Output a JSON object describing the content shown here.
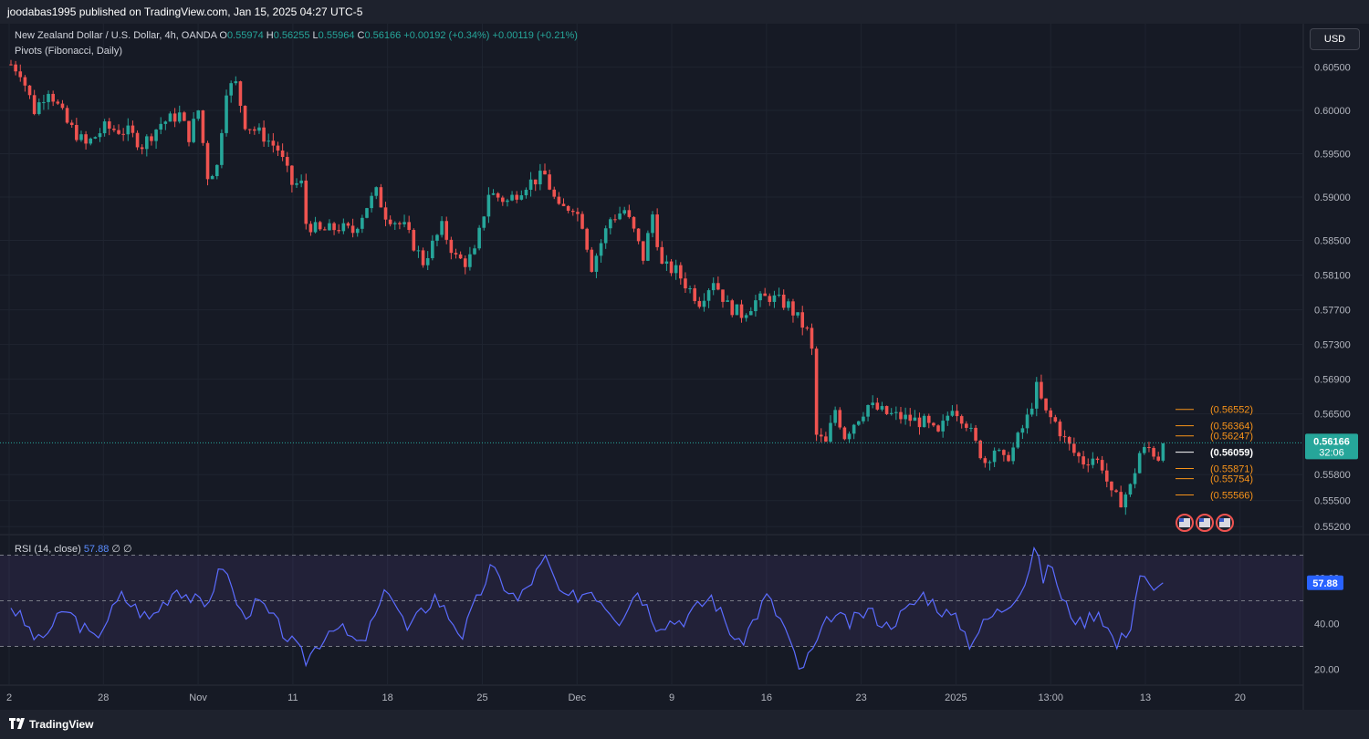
{
  "header": {
    "publisher": "joodabas1995 published on TradingView.com, Jan 15, 2025 04:27 UTC-5"
  },
  "legend": {
    "symbol": "New Zealand Dollar / U.S. Dollar, 4h, OANDA",
    "open_label": "O",
    "open": "0.55974",
    "high_label": "H",
    "high": "0.56255",
    "low_label": "L",
    "low": "0.55964",
    "close_label": "C",
    "close": "0.56166",
    "change1": "+0.00192 (+0.34%)",
    "change2": "+0.00119 (+0.21%)",
    "indicator": "Pivots (Fibonacci, Daily)"
  },
  "currency_button": "USD",
  "rsi_legend": {
    "label": "RSI (14, close)",
    "value": "57.88",
    "extra": "∅ ∅"
  },
  "footer": {
    "brand": "TradingView"
  },
  "colors": {
    "up": "#26a69a",
    "down": "#ef5350",
    "pivot": "#f7931a",
    "rsi": "#5b6cff",
    "background": "#161a25"
  },
  "chart_data": [
    {
      "type": "candlestick",
      "symbol": "NZDUSD",
      "timeframe": "4h",
      "y_ticks": [
        "0.60500",
        "0.60000",
        "0.59500",
        "0.59000",
        "0.58500",
        "0.58100",
        "0.57700",
        "0.57300",
        "0.56900",
        "0.56500",
        "0.55800",
        "0.55500",
        "0.55200"
      ],
      "ylim": [
        0.5515,
        0.6062
      ],
      "x_ticks": [
        "2",
        "28",
        "Nov",
        "11",
        "18",
        "25",
        "Dec",
        "9",
        "16",
        "23",
        "2025",
        "13:00",
        "13",
        "20"
      ],
      "price_path": [
        [
          0,
          0.6053
        ],
        [
          2,
          0.6045
        ],
        [
          5,
          0.6
        ],
        [
          8,
          0.6025
        ],
        [
          12,
          0.5985
        ],
        [
          16,
          0.596
        ],
        [
          20,
          0.598
        ],
        [
          25,
          0.5975
        ],
        [
          28,
          0.596
        ],
        [
          32,
          0.5985
        ],
        [
          36,
          0.5995
        ],
        [
          38,
          0.597
        ],
        [
          40,
          0.6
        ],
        [
          42,
          0.5925
        ],
        [
          44,
          0.5935
        ],
        [
          46,
          0.6025
        ],
        [
          48,
          0.603
        ],
        [
          50,
          0.5985
        ],
        [
          54,
          0.597
        ],
        [
          57,
          0.5955
        ],
        [
          60,
          0.5915
        ],
        [
          62,
          0.5915
        ],
        [
          63,
          0.587
        ],
        [
          66,
          0.586
        ],
        [
          70,
          0.5865
        ],
        [
          73,
          0.586
        ],
        [
          76,
          0.589
        ],
        [
          78,
          0.5905
        ],
        [
          80,
          0.588
        ],
        [
          84,
          0.5865
        ],
        [
          88,
          0.5825
        ],
        [
          92,
          0.5865
        ],
        [
          95,
          0.583
        ],
        [
          97,
          0.5825
        ],
        [
          99,
          0.5835
        ],
        [
          102,
          0.5905
        ],
        [
          106,
          0.5895
        ],
        [
          110,
          0.5915
        ],
        [
          114,
          0.5925
        ],
        [
          117,
          0.5885
        ],
        [
          120,
          0.589
        ],
        [
          122,
          0.587
        ],
        [
          124,
          0.582
        ],
        [
          128,
          0.5875
        ],
        [
          131,
          0.5885
        ],
        [
          133,
          0.586
        ],
        [
          135,
          0.583
        ],
        [
          137,
          0.588
        ],
        [
          139,
          0.582
        ],
        [
          142,
          0.5815
        ],
        [
          144,
          0.58
        ],
        [
          147,
          0.578
        ],
        [
          150,
          0.5805
        ],
        [
          153,
          0.5775
        ],
        [
          156,
          0.5765
        ],
        [
          159,
          0.578
        ],
        [
          162,
          0.5785
        ],
        [
          166,
          0.5775
        ],
        [
          170,
          0.5745
        ],
        [
          171,
          0.5722
        ],
        [
          172,
          0.5625
        ],
        [
          174,
          0.5615
        ],
        [
          176,
          0.5655
        ],
        [
          178,
          0.5625
        ],
        [
          180,
          0.564
        ],
        [
          183,
          0.566
        ],
        [
          187,
          0.565
        ],
        [
          191,
          0.5645
        ],
        [
          195,
          0.564
        ],
        [
          198,
          0.5625
        ],
        [
          201,
          0.566
        ],
        [
          204,
          0.564
        ],
        [
          206,
          0.5615
        ],
        [
          208,
          0.5595
        ],
        [
          210,
          0.561
        ],
        [
          212,
          0.5595
        ],
        [
          214,
          0.561
        ],
        [
          217,
          0.5645
        ],
        [
          219,
          0.568
        ],
        [
          221,
          0.565
        ],
        [
          223,
          0.564
        ],
        [
          225,
          0.562
        ],
        [
          227,
          0.5605
        ],
        [
          229,
          0.5595
        ],
        [
          231,
          0.56
        ],
        [
          233,
          0.559
        ],
        [
          235,
          0.5555
        ],
        [
          237,
          0.555
        ],
        [
          239,
          0.5565
        ],
        [
          241,
          0.5605
        ],
        [
          243,
          0.561
        ],
        [
          245,
          0.56
        ],
        [
          246,
          0.5616
        ]
      ],
      "pivot_levels": [
        {
          "label": "(0.56552)",
          "value": 0.56552
        },
        {
          "label": "(0.56364)",
          "value": 0.56364
        },
        {
          "label": "(0.56247)",
          "value": 0.56247
        },
        {
          "label": "(0.56059)",
          "value": 0.56059
        },
        {
          "label": "(0.55871)",
          "value": 0.55871
        },
        {
          "label": "(0.55754)",
          "value": 0.55754
        },
        {
          "label": "(0.55566)",
          "value": 0.55566
        }
      ],
      "last_price": {
        "value": "0.56166",
        "countdown": "32:06"
      }
    },
    {
      "type": "line",
      "name": "RSI (14, close)",
      "y_ticks": [
        "60.00",
        "40.00",
        "20.00"
      ],
      "ylim": [
        15,
        75
      ],
      "levels": [
        70,
        50,
        30
      ],
      "current": "57.88",
      "values_path": [
        [
          0,
          48
        ],
        [
          6,
          32
        ],
        [
          12,
          46
        ],
        [
          18,
          33
        ],
        [
          24,
          52
        ],
        [
          30,
          42
        ],
        [
          36,
          56
        ],
        [
          42,
          47
        ],
        [
          46,
          66
        ],
        [
          50,
          44
        ],
        [
          54,
          49
        ],
        [
          60,
          34
        ],
        [
          64,
          24
        ],
        [
          70,
          40
        ],
        [
          76,
          30
        ],
        [
          82,
          56
        ],
        [
          86,
          37
        ],
        [
          92,
          52
        ],
        [
          98,
          35
        ],
        [
          104,
          64
        ],
        [
          110,
          50
        ],
        [
          116,
          68
        ],
        [
          120,
          50
        ],
        [
          126,
          55
        ],
        [
          132,
          42
        ],
        [
          136,
          55
        ],
        [
          140,
          40
        ],
        [
          146,
          42
        ],
        [
          152,
          52
        ],
        [
          158,
          30
        ],
        [
          164,
          52
        ],
        [
          168,
          38
        ],
        [
          171,
          19
        ],
        [
          174,
          28
        ],
        [
          178,
          44
        ],
        [
          182,
          40
        ],
        [
          186,
          46
        ],
        [
          190,
          39
        ],
        [
          194,
          45
        ],
        [
          198,
          53
        ],
        [
          202,
          46
        ],
        [
          206,
          40
        ],
        [
          208,
          32
        ],
        [
          212,
          42
        ],
        [
          216,
          48
        ],
        [
          220,
          58
        ],
        [
          222,
          73
        ],
        [
          224,
          60
        ],
        [
          226,
          66
        ],
        [
          228,
          50
        ],
        [
          232,
          40
        ],
        [
          236,
          46
        ],
        [
          240,
          30
        ],
        [
          243,
          40
        ],
        [
          245,
          62
        ],
        [
          248,
          53
        ],
        [
          250,
          57.88
        ]
      ]
    }
  ]
}
